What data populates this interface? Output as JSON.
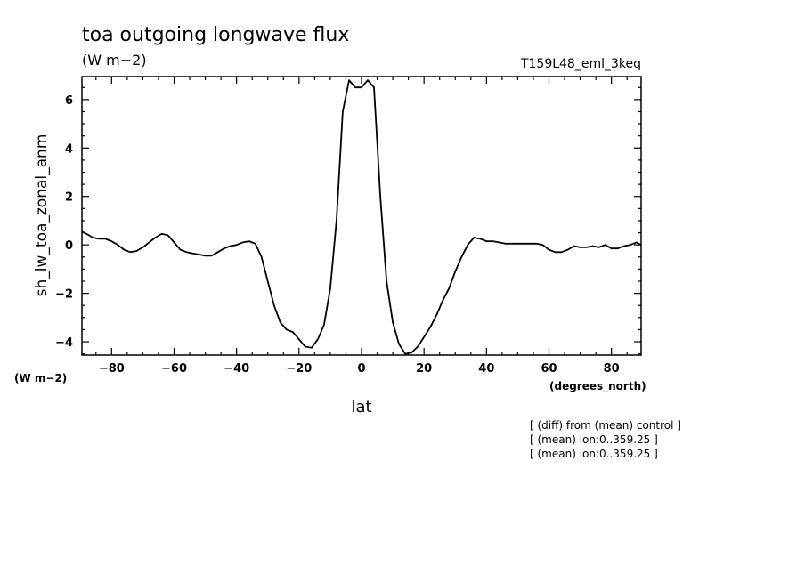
{
  "chart_data": {
    "type": "line",
    "title": "toa outgoing longwave flux",
    "units": "(W m−2)",
    "run_label": "T159L48_eml_3keq",
    "ylabel": "sh_lw_toa_zonal_anm",
    "yunit_corner": "(W m−2)",
    "xlabel": "lat",
    "xunit": "(degrees_north)",
    "xlim": [
      -89.5,
      89.5
    ],
    "ylim": [
      -4.55,
      6.95
    ],
    "xticks": [
      -80,
      -60,
      -40,
      -20,
      0,
      20,
      40,
      60,
      80
    ],
    "xtick_labels": [
      "−80",
      "−60",
      "−40",
      "−20",
      "0",
      "20",
      "40",
      "60",
      "80"
    ],
    "yticks": [
      -4,
      -2,
      0,
      2,
      4,
      6
    ],
    "ytick_labels": [
      "−4",
      "−2",
      "0",
      "2",
      "4",
      "6"
    ],
    "grid": false,
    "series": [
      {
        "x": [
          -89.5,
          -88,
          -86,
          -84,
          -82,
          -80,
          -78,
          -76,
          -74,
          -72,
          -70,
          -68,
          -66,
          -64,
          -62,
          -60,
          -58,
          -56,
          -54,
          -52,
          -50,
          -48,
          -46,
          -44,
          -42,
          -40,
          -38,
          -36,
          -34,
          -32,
          -30,
          -28,
          -26,
          -24,
          -22,
          -20,
          -18,
          -16,
          -14,
          -12,
          -10,
          -8,
          -6,
          -4,
          -2,
          0,
          2,
          4,
          6,
          8,
          10,
          12,
          14,
          16,
          18,
          20,
          22,
          24,
          26,
          28,
          30,
          32,
          34,
          36,
          38,
          40,
          42,
          44,
          46,
          48,
          50,
          52,
          54,
          56,
          58,
          60,
          62,
          64,
          66,
          68,
          70,
          72,
          74,
          76,
          78,
          80,
          82,
          84,
          86,
          88,
          89.5
        ],
        "y": [
          0.55,
          0.45,
          0.3,
          0.25,
          0.25,
          0.15,
          0.0,
          -0.2,
          -0.3,
          -0.25,
          -0.1,
          0.1,
          0.3,
          0.45,
          0.4,
          0.1,
          -0.2,
          -0.3,
          -0.35,
          -0.4,
          -0.45,
          -0.45,
          -0.3,
          -0.15,
          -0.05,
          0.0,
          0.1,
          0.15,
          0.05,
          -0.5,
          -1.5,
          -2.5,
          -3.2,
          -3.5,
          -3.6,
          -3.9,
          -4.2,
          -4.25,
          -3.9,
          -3.3,
          -1.8,
          1.0,
          5.5,
          6.8,
          6.5,
          6.5,
          6.8,
          6.5,
          2.0,
          -1.5,
          -3.2,
          -4.1,
          -4.5,
          -4.45,
          -4.2,
          -3.8,
          -3.4,
          -2.9,
          -2.3,
          -1.8,
          -1.1,
          -0.5,
          0.0,
          0.3,
          0.25,
          0.15,
          0.15,
          0.1,
          0.05,
          0.05,
          0.05,
          0.05,
          0.05,
          0.05,
          0.0,
          -0.2,
          -0.3,
          -0.3,
          -0.2,
          -0.05,
          -0.1,
          -0.1,
          -0.05,
          -0.1,
          0.0,
          -0.15,
          -0.15,
          -0.05,
          0.0,
          0.1,
          0.0
        ]
      }
    ],
    "notes": [
      "[ (diff) from (mean) control ]",
      "[ (mean) lon:0..359.25 ]",
      "[ (mean) lon:0..359.25 ]"
    ]
  }
}
